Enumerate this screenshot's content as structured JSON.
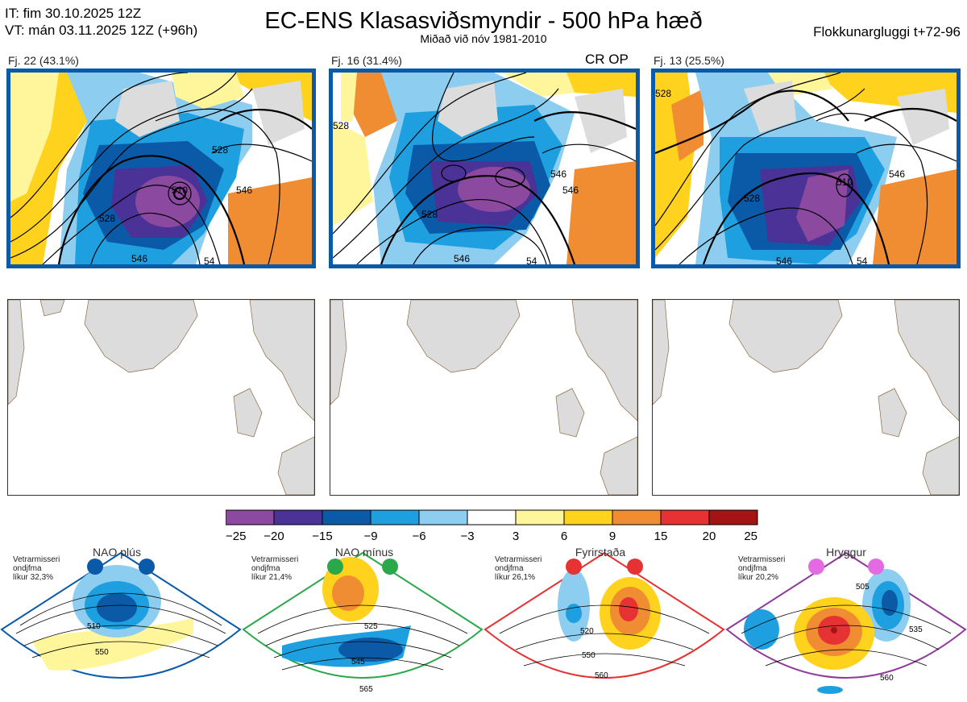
{
  "header": {
    "init_time": "IT: fim 30.10.2025 12Z",
    "valid_time": "VT: mán 03.11.2025 12Z  (+96h)",
    "title": "EC-ENS Klasasviðsmyndir - 500 hPa hæð",
    "subtitle": "Miðað við nóv 1981-2010",
    "window": "Flokkunargluggi t+72-96"
  },
  "clusters": [
    {
      "label": "Fj. 22 (43.1%)",
      "contours": [
        "546",
        "528",
        "510",
        "528",
        "546",
        "54"
      ]
    },
    {
      "label": "Fj. 16 (31.4%)",
      "op_label": "CR OP",
      "contours": [
        "528",
        "546",
        "528",
        "546",
        "546",
        "54"
      ]
    },
    {
      "label": "Fj. 13 (25.5%)",
      "contours": [
        "528",
        "510",
        "528",
        "546",
        "546",
        "54"
      ]
    }
  ],
  "colorbar": {
    "ticks": [
      "−25",
      "−20",
      "−15",
      "−9",
      "−6",
      "−3",
      "3",
      "6",
      "9",
      "15",
      "20",
      "25"
    ],
    "colors": [
      "#8b4aa0",
      "#4b3296",
      "#0b5aa8",
      "#1ea0e0",
      "#8ccdf0",
      "#ffffff",
      "#fff59a",
      "#ffd21e",
      "#f08c32",
      "#e63232",
      "#a51414"
    ]
  },
  "regimes": [
    {
      "name": "NAO plús",
      "desc": [
        "Vetrarmisseri",
        "ondjfma",
        "líkur 32,3%"
      ],
      "color": "#0b5aa8",
      "contours": [
        "510",
        "550"
      ]
    },
    {
      "name": "NAO mínus",
      "desc": [
        "Vetrarmisseri",
        "ondjfma",
        "líkur 21,4%"
      ],
      "color": "#2aa84a",
      "contours": [
        "525",
        "545",
        "565"
      ]
    },
    {
      "name": "Fyrirstaða",
      "desc": [
        "Vetrarmisseri",
        "ondjfma",
        "líkur 26,1%"
      ],
      "color": "#e63232",
      "contours": [
        "520",
        "550",
        "560"
      ]
    },
    {
      "name": "Hryggur",
      "desc": [
        "Vetrarmisseri",
        "ondjfma",
        "líkur 20,2%"
      ],
      "color": "#8e3a9a",
      "dot_color": "#e36ae3",
      "contours": [
        "505",
        "535",
        "560"
      ]
    }
  ]
}
